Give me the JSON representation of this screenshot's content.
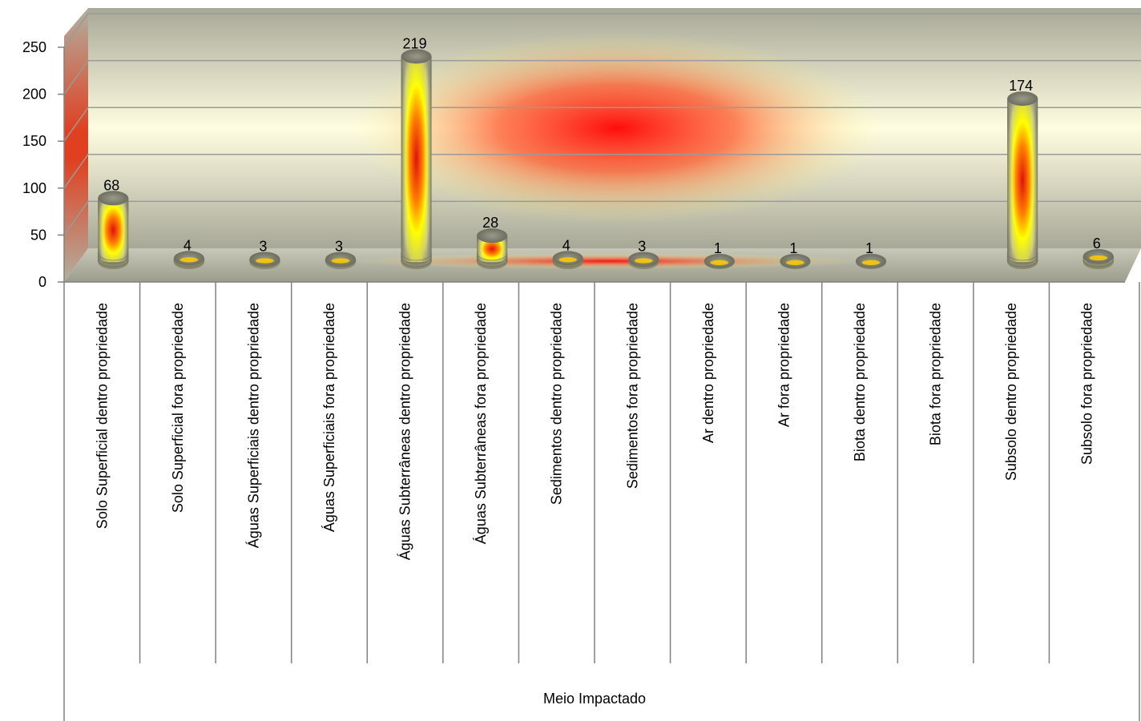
{
  "chart_data": {
    "type": "bar",
    "style": "3d-cylinder",
    "categories": [
      "Solo Superficial dentro propriedade",
      "Solo Superficial fora propriedade",
      "Águas Superficiais dentro propriedade",
      "Águas Superficiais fora propriedade",
      "Águas Subterrâneas dentro propriedade",
      "Águas Subterrâneas fora propriedade",
      "Sedimentos dentro propriedade",
      "Sedimentos fora propriedade",
      "Ar dentro propriedade",
      "Ar fora propriedade",
      "Biota dentro propriedade",
      "Biota fora propriedade",
      "Subsolo dentro propriedade",
      "Subsolo fora propriedade"
    ],
    "values": [
      68,
      4,
      3,
      3,
      219,
      28,
      4,
      3,
      1,
      1,
      1,
      null,
      174,
      6
    ],
    "data_labels": [
      "68",
      "4",
      "3",
      "3",
      "219",
      "28",
      "4",
      "3",
      "1",
      "1",
      "1",
      "",
      "174",
      "6"
    ],
    "xlabel": "Meio Impactado",
    "ylabel": "",
    "ylim": [
      0,
      250
    ],
    "yticks": [
      "0",
      "50",
      "100",
      "150",
      "200",
      "250"
    ],
    "grid": true,
    "legend": "none",
    "colors": {
      "bar_core": "#e01010",
      "bar_mid": "#ffff00",
      "bar_edge": "#808060",
      "wall_light": "#fffde0",
      "wall_dark": "#b8b8a8",
      "wall_glow": "#ff0000",
      "gridline": "#9a9a9a"
    }
  }
}
